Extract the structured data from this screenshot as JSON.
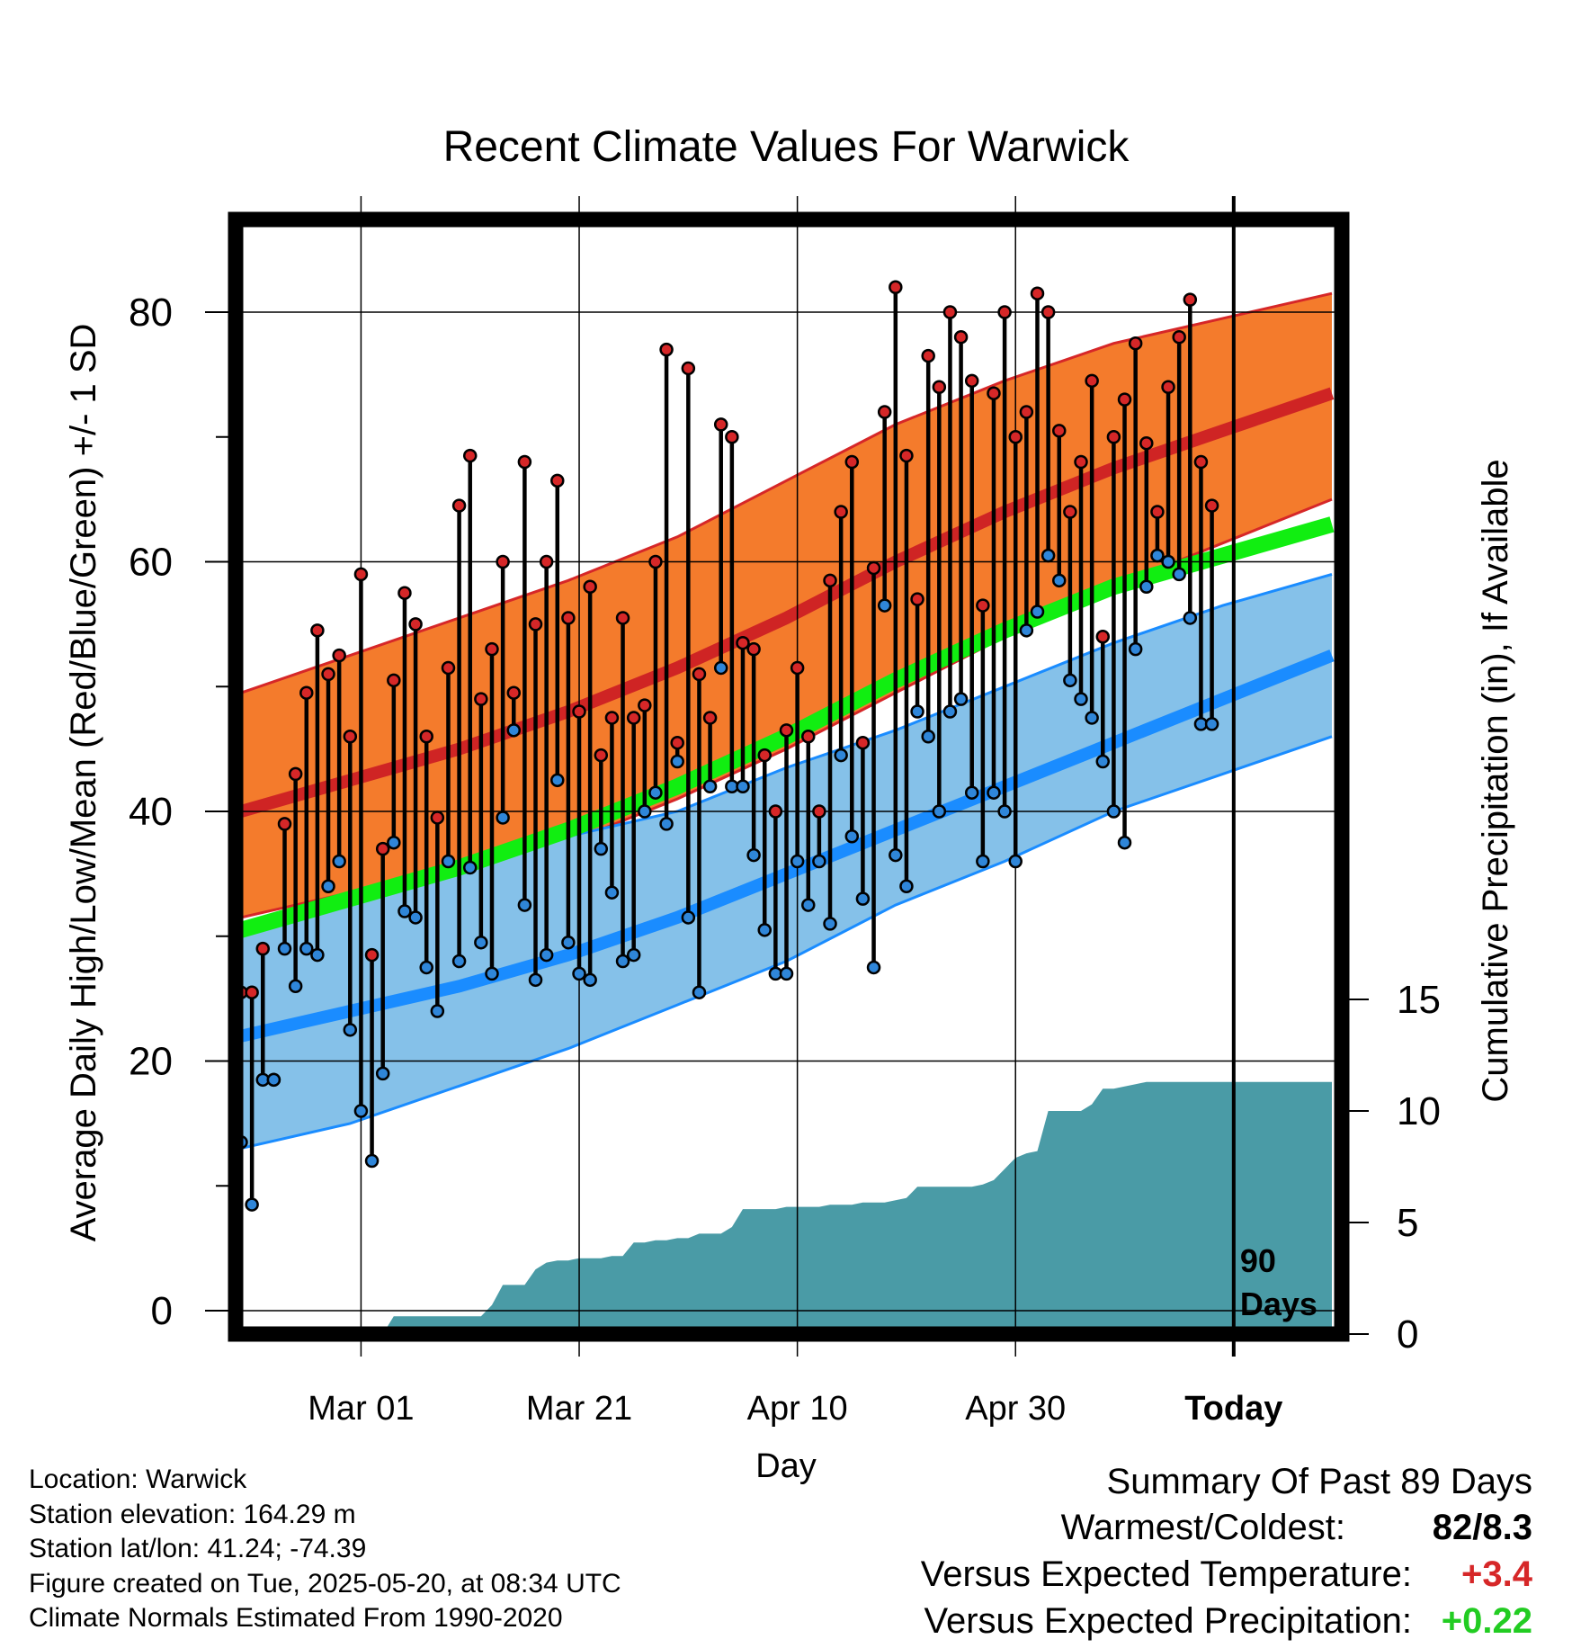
{
  "chart_data": {
    "type": "line",
    "title": "Recent Climate Values For Warwick",
    "xlabel": "Day",
    "ylabel": "Average Daily High/Low/Mean (Red/Blue/Green) +/- 1 SD",
    "y2label": "Cumulative Precipitation (in), If Available",
    "x_ticks": [
      {
        "day": 11,
        "label": "Mar 01"
      },
      {
        "day": 31,
        "label": "Mar 21"
      },
      {
        "day": 51,
        "label": "Apr 10"
      },
      {
        "day": 71,
        "label": "Apr 30"
      },
      {
        "day": 91,
        "label": "Today"
      }
    ],
    "xlim": [
      0,
      100
    ],
    "today_day": 91,
    "today_annotation": [
      "90",
      "Days"
    ],
    "ylim": [
      -1,
      88
    ],
    "y_ticks": [
      0,
      20,
      40,
      60,
      80
    ],
    "y2lim": [
      0,
      30
    ],
    "y2_ticks": [
      0,
      5,
      10,
      15
    ],
    "grid": true,
    "colors": {
      "high_band": "#f47b2c",
      "high_edge": "#d62728",
      "high_mean": "#cf2424",
      "low_band": "#85c1e9",
      "low_edge": "#1a8cff",
      "low_mean": "#1a8cff",
      "mean_line": "#11ee11",
      "precip": "#4a9ba6",
      "high_marker": "#d62728",
      "low_marker": "#2f86d9"
    },
    "normal_days": [
      0,
      10,
      20,
      30,
      40,
      50,
      60,
      70,
      80,
      90,
      100
    ],
    "normal_high": [
      40,
      42.5,
      45,
      48,
      51.5,
      55.5,
      60,
      64,
      67.5,
      70.5,
      73.5
    ],
    "normal_high_sd_upper": [
      49.5,
      52.5,
      55.5,
      58.5,
      62,
      66.5,
      71,
      74.5,
      77.5,
      79.5,
      81.5
    ],
    "normal_high_sd_lower": [
      31.5,
      33.5,
      35.5,
      37.5,
      41,
      45,
      49.5,
      54,
      58,
      61.5,
      65
    ],
    "normal_mean": [
      30.5,
      33,
      35.5,
      38.5,
      42,
      46,
      50.5,
      54.5,
      58,
      60.5,
      63
    ],
    "normal_low": [
      22,
      24,
      26,
      28.5,
      31.5,
      35,
      38.5,
      42,
      45.5,
      49,
      52.5
    ],
    "normal_low_sd_upper": [
      30,
      32.5,
      35,
      38,
      40,
      43.5,
      46.5,
      50,
      53.5,
      56.5,
      59
    ],
    "normal_low_sd_lower": [
      13,
      15,
      18,
      21,
      24.5,
      28,
      32.5,
      36,
      40,
      43,
      46
    ],
    "daily_days": [
      0,
      1,
      2,
      3,
      4,
      5,
      6,
      7,
      8,
      9,
      10,
      11,
      12,
      13,
      14,
      15,
      16,
      17,
      18,
      19,
      20,
      21,
      22,
      23,
      24,
      25,
      26,
      27,
      28,
      29,
      30,
      31,
      32,
      33,
      34,
      35,
      36,
      37,
      38,
      39,
      40,
      41,
      42,
      43,
      44,
      45,
      46,
      47,
      48,
      49,
      50,
      51,
      52,
      53,
      54,
      55,
      56,
      57,
      58,
      59,
      60,
      61,
      62,
      63,
      64,
      65,
      66,
      67,
      68,
      69,
      70,
      71,
      72,
      73,
      74,
      75,
      76,
      77,
      78,
      79,
      80,
      81,
      82,
      83,
      84,
      85,
      86,
      87,
      88,
      89
    ],
    "daily_high": [
      25.5,
      25.5,
      29,
      18.5,
      39,
      43,
      49.5,
      54.5,
      51,
      52.5,
      46,
      59,
      28.5,
      37,
      50.5,
      57.5,
      55,
      46,
      39.5,
      51.5,
      64.5,
      68.5,
      49,
      53,
      60,
      49.5,
      68,
      55,
      60,
      66.5,
      55.5,
      48,
      58,
      44.5,
      47.5,
      55.5,
      47.5,
      48.5,
      60,
      77,
      45.5,
      75.5,
      51,
      47.5,
      71,
      70,
      53.5,
      53,
      44.5,
      40,
      46.5,
      51.5,
      46,
      40,
      58.5,
      64,
      68,
      45.5,
      59.5,
      72,
      82,
      68.5,
      57,
      76.5,
      74,
      80,
      78,
      74.5,
      56.5,
      73.5,
      80,
      70,
      72,
      81.5,
      80,
      70.5,
      64,
      68,
      74.5,
      54,
      70,
      73,
      77.5,
      69.5,
      64,
      74,
      78,
      81,
      68,
      64.5
    ],
    "daily_low": [
      13.5,
      8.5,
      18.5,
      18.5,
      29,
      26,
      29,
      28.5,
      34,
      36,
      22.5,
      16,
      12,
      19,
      37.5,
      32,
      31.5,
      27.5,
      24,
      36,
      28,
      35.5,
      29.5,
      27,
      39.5,
      46.5,
      32.5,
      26.5,
      28.5,
      42.5,
      29.5,
      27,
      26.5,
      37,
      33.5,
      28,
      28.5,
      40,
      41.5,
      39,
      44,
      31.5,
      25.5,
      42,
      51.5,
      42,
      42,
      36.5,
      30.5,
      27,
      27,
      36,
      32.5,
      36,
      31,
      44.5,
      38,
      33,
      27.5,
      56.5,
      36.5,
      34,
      48,
      46,
      40,
      48,
      49,
      41.5,
      36,
      41.5,
      40,
      36,
      54.5,
      56,
      60.5,
      58.5,
      50.5,
      49,
      47.5,
      44,
      40,
      37.5,
      53,
      58,
      60.5,
      60,
      59,
      55.5,
      47,
      47
    ],
    "precip_days": [
      0,
      12,
      13,
      14,
      22,
      23,
      24,
      25,
      26,
      27,
      28,
      29,
      30,
      31,
      32,
      33,
      34,
      35,
      36,
      37,
      38,
      39,
      40,
      41,
      42,
      43,
      44,
      45,
      46,
      47,
      48,
      49,
      50,
      51,
      52,
      53,
      54,
      55,
      56,
      57,
      58,
      59,
      60,
      61,
      62,
      63,
      64,
      65,
      66,
      67,
      68,
      69,
      70,
      71,
      72,
      73,
      74,
      75,
      76,
      77,
      78,
      79,
      80,
      81,
      82,
      83,
      84,
      85,
      86,
      87,
      88,
      89,
      90,
      91,
      92,
      93,
      94,
      95,
      96,
      97,
      98,
      99,
      100
    ],
    "precip_cum": [
      0,
      0,
      0,
      0.8,
      0.8,
      1.3,
      2.2,
      2.2,
      2.2,
      2.9,
      3.2,
      3.3,
      3.3,
      3.4,
      3.4,
      3.4,
      3.5,
      3.5,
      4.1,
      4.1,
      4.2,
      4.2,
      4.3,
      4.3,
      4.5,
      4.5,
      4.5,
      4.8,
      5.6,
      5.6,
      5.6,
      5.6,
      5.7,
      5.7,
      5.7,
      5.7,
      5.8,
      5.8,
      5.8,
      5.9,
      5.9,
      5.9,
      6.0,
      6.1,
      6.6,
      6.6,
      6.6,
      6.6,
      6.6,
      6.6,
      6.7,
      6.9,
      7.4,
      7.9,
      8.1,
      8.2,
      10.0,
      10.0,
      10.0,
      10.0,
      10.3,
      11.0,
      11.0,
      11.1,
      11.2,
      11.3,
      11.3,
      11.3,
      11.3,
      11.3,
      11.3,
      11.3,
      11.3,
      11.3,
      11.3,
      11.3,
      11.3,
      11.3,
      11.3,
      11.3,
      11.3,
      11.3,
      11.3
    ]
  },
  "footer": {
    "location": "Location: Warwick",
    "elevation": "Station elevation: 164.29 m",
    "latlon": "Station lat/lon: 41.24; -74.39",
    "created": "Figure created on Tue, 2025-05-20, at 08:34 UTC",
    "normals": "Climate Normals Estimated From 1990-2020"
  },
  "summary": {
    "title": "Summary Of Past 89 Days",
    "warmest_label": "Warmest/Coldest:",
    "warmest_value": "82/8.3",
    "temp_label": "Versus Expected Temperature:",
    "temp_value": "+3.4",
    "temp_color": "#d62728",
    "precip_label": "Versus Expected Precipitation:",
    "precip_value": "+0.22",
    "precip_color": "#22cc22"
  }
}
